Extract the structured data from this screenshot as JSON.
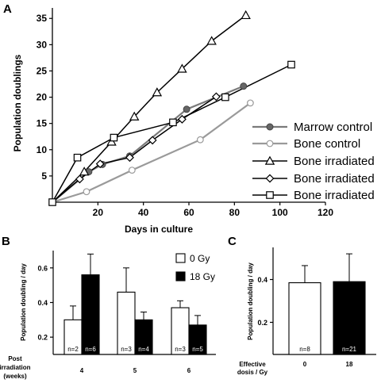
{
  "chart_data": [
    {
      "panel": "A",
      "type": "line",
      "xlabel": "Days in culture",
      "ylabel": "Population doublings",
      "xlim": [
        0,
        120
      ],
      "ylim": [
        0,
        37
      ],
      "xticks": [
        20,
        40,
        60,
        80,
        100,
        120
      ],
      "yticks": [
        5,
        10,
        15,
        20,
        25,
        30,
        35
      ],
      "grid": false,
      "legend_position": "right",
      "series": [
        {
          "name": "Marrow control",
          "marker": "circle-filled",
          "color": "#7a7a7a",
          "points": [
            [
              0,
              0
            ],
            [
              16,
              5.8
            ],
            [
              22,
              7.2
            ],
            [
              34,
              8.8
            ],
            [
              59,
              17.7
            ],
            [
              84,
              22.1
            ]
          ]
        },
        {
          "name": "Bone control",
          "marker": "circle-open",
          "color": "#9a9a9a",
          "points": [
            [
              0,
              0
            ],
            [
              15,
              2
            ],
            [
              35,
              6.1
            ],
            [
              65,
              11.9
            ],
            [
              87,
              18.9
            ]
          ]
        },
        {
          "name": "Bone irradiated",
          "marker": "triangle-open",
          "color": "#000000",
          "points": [
            [
              0,
              0
            ],
            [
              14,
              5.8
            ],
            [
              26,
              11.5
            ],
            [
              36,
              16.3
            ],
            [
              46,
              20.9
            ],
            [
              57,
              25.4
            ],
            [
              70,
              30.7
            ],
            [
              85,
              35.6
            ]
          ]
        },
        {
          "name": "Bone irradiated",
          "marker": "diamond-open",
          "color": "#000000",
          "points": [
            [
              0,
              0
            ],
            [
              12,
              4.4
            ],
            [
              21,
              7.3
            ],
            [
              34,
              8.5
            ],
            [
              44,
              11.8
            ],
            [
              57,
              15.8
            ],
            [
              72,
              20.1
            ]
          ]
        },
        {
          "name": "Bone irradiated",
          "marker": "square-open",
          "color": "#000000",
          "points": [
            [
              0,
              0
            ],
            [
              11,
              8.5
            ],
            [
              27,
              12.3
            ],
            [
              53,
              15.2
            ],
            [
              76,
              20
            ],
            [
              105,
              26.2
            ]
          ]
        }
      ]
    },
    {
      "panel": "B",
      "type": "bar",
      "ylabel": "Population doubling / day",
      "xcaption_lines": [
        "Post",
        "irradiation",
        "(weeks)"
      ],
      "categories": [
        "4",
        "5",
        "6"
      ],
      "ylim": [
        0.1,
        0.7
      ],
      "yticks": [
        0.2,
        0.4,
        0.6
      ],
      "legend_position": "top-right",
      "series": [
        {
          "name": "0 Gy",
          "color": "#ffffff",
          "values": [
            0.3,
            0.46,
            0.37
          ],
          "errors": [
            0.08,
            0.14,
            0.04
          ],
          "n_labels": [
            "n=2",
            "n=3",
            "n=3"
          ]
        },
        {
          "name": "18 Gy",
          "color": "#000000",
          "values": [
            0.56,
            0.3,
            0.27
          ],
          "errors": [
            0.12,
            0.045,
            0.055
          ],
          "n_labels": [
            "n=6",
            "n=4",
            "n=5"
          ]
        }
      ]
    },
    {
      "panel": "C",
      "type": "bar",
      "ylabel": "Population doubling / day",
      "xcaption_lines": [
        "Effective",
        "dosis / Gy"
      ],
      "categories": [
        "0",
        "18"
      ],
      "ylim": [
        0.05,
        0.55
      ],
      "yticks": [
        0.2,
        0.4
      ],
      "colors": [
        "#ffffff",
        "#000000"
      ],
      "values": [
        0.385,
        0.39
      ],
      "errors": [
        0.08,
        0.13
      ],
      "n_labels": [
        "n=8",
        "n=21"
      ]
    }
  ]
}
